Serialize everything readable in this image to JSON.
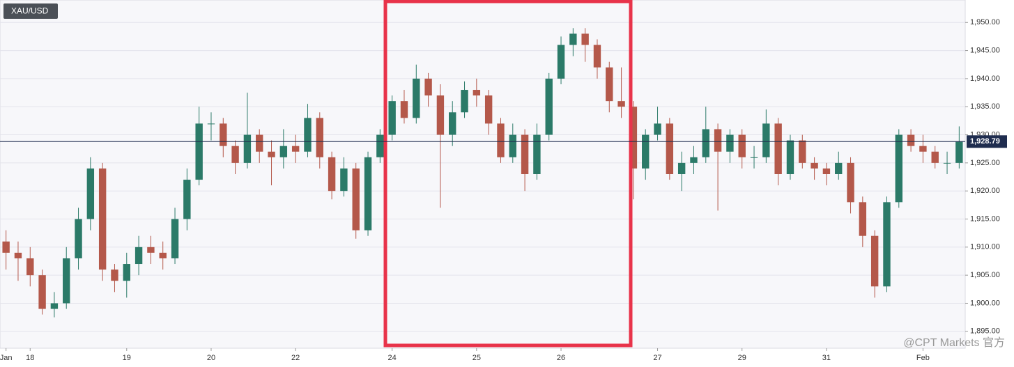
{
  "chart_data": {
    "type": "candlestick",
    "title": "XAU/USD",
    "watermark": "@CPT Markets 官方",
    "categories": [
      "Jan",
      null,
      "18",
      null,
      null,
      null,
      null,
      null,
      null,
      null,
      "19",
      null,
      null,
      null,
      null,
      null,
      null,
      "20",
      null,
      null,
      null,
      null,
      null,
      null,
      "22",
      null,
      null,
      null,
      null,
      null,
      null,
      null,
      "24",
      null,
      null,
      null,
      null,
      null,
      null,
      "25",
      null,
      null,
      null,
      null,
      null,
      null,
      "26",
      null,
      null,
      null,
      null,
      null,
      null,
      null,
      "27",
      null,
      null,
      null,
      null,
      null,
      null,
      "29",
      null,
      null,
      null,
      null,
      null,
      null,
      "31",
      null,
      null,
      null,
      null,
      null,
      null,
      null,
      "Feb",
      null,
      null,
      null
    ],
    "open": [
      1911,
      1909,
      1908,
      1905,
      1899,
      1900,
      1908,
      1915,
      1924,
      1906,
      1904,
      1907,
      1910,
      1909,
      1908,
      1915,
      1922,
      1932,
      1932,
      1928,
      1925,
      1930,
      1927,
      1926,
      1928,
      1927,
      1933,
      1926,
      1920,
      1924,
      1913,
      1926,
      1930,
      1936,
      1933,
      1940,
      1937,
      1930,
      1934,
      1938,
      1937,
      1932,
      1926,
      1930,
      1923,
      1930,
      1940,
      1946,
      1948,
      1946,
      1942,
      1936,
      1935,
      1924,
      1930,
      1932,
      1923,
      1925,
      1926,
      1931,
      1927,
      1930,
      1926,
      1926,
      1932,
      1923,
      1929,
      1925,
      1924,
      1923,
      1925,
      1918,
      1912,
      1903,
      1918,
      1930,
      1928,
      1927,
      1925,
      1925
    ],
    "high": [
      1913,
      1911,
      1910,
      1906,
      1902,
      1910,
      1917,
      1926,
      1925,
      1907,
      1909,
      1912,
      1912,
      1911,
      1917,
      1924,
      1935,
      1934,
      1933,
      1929,
      1937.5,
      1931,
      1929,
      1931,
      1930,
      1935.5,
      1934,
      1927,
      1926,
      1925,
      1927,
      1931,
      1937,
      1938,
      1942.5,
      1941,
      1939,
      1936,
      1939.5,
      1940,
      1938,
      1933,
      1932,
      1931,
      1932,
      1941,
      1947.5,
      1949,
      1949,
      1947,
      1943,
      1942,
      1936,
      1931,
      1935,
      1933,
      1927,
      1928,
      1935,
      1932,
      1931,
      1931,
      1928,
      1934.5,
      1933,
      1930,
      1930,
      1926,
      1925,
      1927,
      1926,
      1919,
      1913,
      1919,
      1931,
      1931,
      1930,
      1928,
      1927,
      1931.5
    ],
    "low": [
      1906,
      1904,
      1903,
      1898,
      1897.5,
      1899,
      1906,
      1913,
      1904,
      1902,
      1901,
      1905,
      1907,
      1906,
      1907,
      1913,
      1921,
      1929,
      1926,
      1923,
      1924,
      1925,
      1921,
      1924,
      1925,
      1926,
      1924,
      1918.5,
      1919,
      1911.5,
      1912,
      1925,
      1929,
      1932,
      1932,
      1935,
      1917,
      1928,
      1933,
      1935,
      1930,
      1925,
      1925,
      1920,
      1922,
      1929,
      1939,
      1944,
      1943,
      1940,
      1934,
      1933,
      1918.5,
      1922,
      1929,
      1922,
      1920,
      1923,
      1925,
      1916.5,
      1925,
      1924,
      1924,
      1925,
      1921,
      1922,
      1924,
      1922,
      1921,
      1922,
      1916,
      1910,
      1901,
      1902,
      1917,
      1927,
      1925,
      1924,
      1923,
      1924
    ],
    "close": [
      1909,
      1908,
      1905,
      1899,
      1900,
      1908,
      1915,
      1924,
      1906,
      1904,
      1907,
      1910,
      1909,
      1908,
      1915,
      1922,
      1932,
      1932,
      1928,
      1925,
      1930,
      1927,
      1926,
      1928,
      1927,
      1933,
      1926,
      1920,
      1924,
      1913,
      1926,
      1930,
      1936,
      1933,
      1940,
      1937,
      1930,
      1934,
      1938,
      1937,
      1932,
      1926,
      1930,
      1923,
      1930,
      1940,
      1946,
      1948,
      1946,
      1942,
      1936,
      1935,
      1924,
      1930,
      1932,
      1923,
      1925,
      1926,
      1931,
      1927,
      1930,
      1926,
      1926,
      1932,
      1923,
      1929,
      1925,
      1924,
      1923,
      1925,
      1918,
      1912,
      1903,
      1918,
      1930,
      1928,
      1927,
      1925,
      1925,
      1928.79
    ],
    "up_color": "#2b7a68",
    "down_color": "#b4584a",
    "last_price": {
      "value": 1928.79,
      "label": "1,928.79"
    },
    "ylim": [
      1892,
      1954
    ],
    "yticks": [
      {
        "value": 1895,
        "label": "1,895.00"
      },
      {
        "value": 1900,
        "label": "1,900.00"
      },
      {
        "value": 1905,
        "label": "1,905.00"
      },
      {
        "value": 1910,
        "label": "1,910.00"
      },
      {
        "value": 1915,
        "label": "1,915.00"
      },
      {
        "value": 1920,
        "label": "1,920.00"
      },
      {
        "value": 1925,
        "label": "1,925.00"
      },
      {
        "value": 1930,
        "label": "1,930.00"
      },
      {
        "value": 1935,
        "label": "1,935.00"
      },
      {
        "value": 1940,
        "label": "1,940.00"
      },
      {
        "value": 1945,
        "label": "1,945.00"
      },
      {
        "value": 1950,
        "label": "1,950.00"
      }
    ],
    "grid": true
  }
}
